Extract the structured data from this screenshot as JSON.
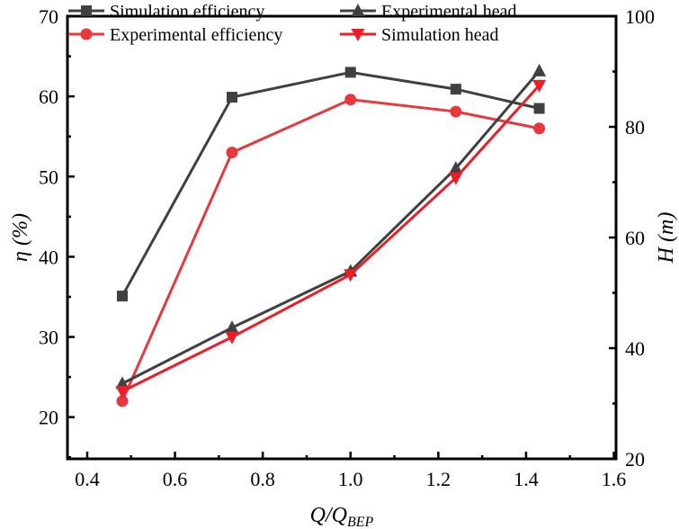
{
  "chart_data": {
    "type": "line",
    "xlabel": "Q/Q",
    "xlabel_sub": "BEP",
    "ylabel_left": "η (%)",
    "ylabel_right": "H (m)",
    "xlim": [
      0.355,
      1.605
    ],
    "ylim_left": [
      14.8,
      70
    ],
    "ylim_right": [
      20,
      100
    ],
    "x_ticks": [
      "0.4",
      "0.6",
      "0.8",
      "1.0",
      "1.2",
      "1.4",
      "1.6"
    ],
    "y_left_ticks": [
      "20",
      "30",
      "40",
      "50",
      "60",
      "70"
    ],
    "y_right_ticks": [
      "20",
      "40",
      "60",
      "80",
      "100"
    ],
    "grid": false,
    "legend_placement": "top",
    "x": [
      0.48,
      0.73,
      1.0,
      1.24,
      1.43
    ],
    "series": [
      {
        "name": "Simulation efficiency",
        "axis": "left",
        "color": "#404040",
        "marker": "square",
        "values": [
          35.1,
          59.9,
          63.0,
          60.9,
          58.5
        ]
      },
      {
        "name": "Experimental efficiency",
        "axis": "left",
        "color": "#e8383d",
        "marker": "circle",
        "values": [
          22.0,
          53.0,
          59.6,
          58.1,
          56.0
        ]
      },
      {
        "name": "Experimental head",
        "axis": "right",
        "color": "#404040",
        "marker": "triangle-up",
        "values": [
          33.6,
          43.7,
          53.9,
          72.5,
          90.1
        ]
      },
      {
        "name": "Simulation head",
        "axis": "right",
        "color": "#ee1c25",
        "marker": "triangle-down",
        "values": [
          32.2,
          42.0,
          53.3,
          70.8,
          87.5
        ]
      }
    ]
  }
}
